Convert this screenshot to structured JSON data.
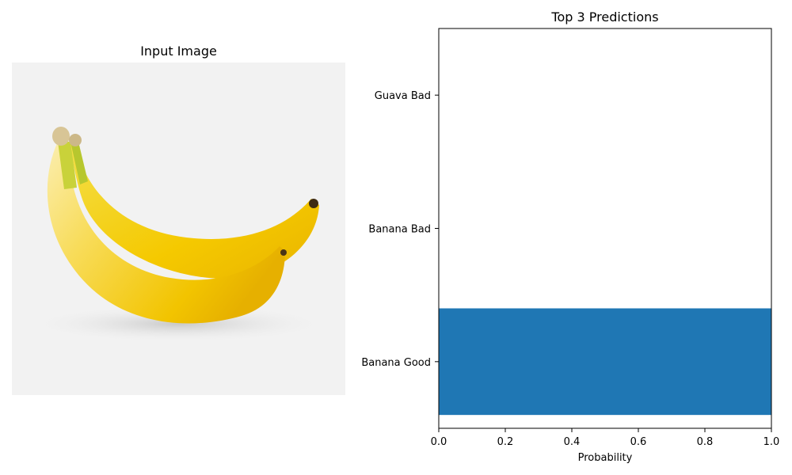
{
  "image_panel": {
    "title": "Input Image",
    "subject": "two yellow bananas on a light grey background"
  },
  "chart_data": {
    "type": "bar",
    "orientation": "horizontal",
    "title": "Top 3 Predictions",
    "xlabel": "Probability",
    "ylabel": "",
    "categories": [
      "Banana Good",
      "Banana Bad",
      "Guava Bad"
    ],
    "values": [
      1.0,
      0.0,
      0.0
    ],
    "xlim": [
      0,
      1.0
    ],
    "xticks": [
      "0.0",
      "0.2",
      "0.4",
      "0.6",
      "0.8",
      "1.0"
    ],
    "bar_color": "#1f77b4",
    "grid": false
  }
}
